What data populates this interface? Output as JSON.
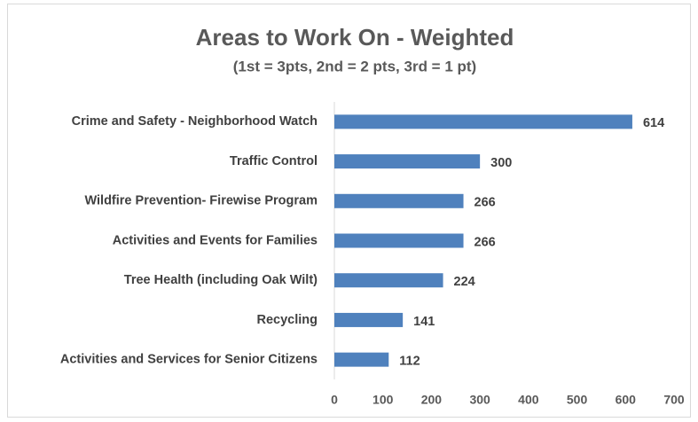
{
  "chart_data": {
    "type": "bar",
    "orientation": "horizontal",
    "title": "Areas to Work On - Weighted",
    "subtitle": "(1st = 3pts, 2nd = 2 pts, 3rd = 1 pt)",
    "categories": [
      "Crime and Safety - Neighborhood Watch",
      "Traffic Control",
      "Wildfire Prevention- Firewise Program",
      "Activities and Events for Families",
      "Tree Health (including Oak Wilt)",
      "Recycling",
      "Activities and Services for Senior Citizens"
    ],
    "values": [
      614,
      300,
      266,
      266,
      224,
      141,
      112
    ],
    "color": "#4f81bd",
    "xlim": [
      0,
      700
    ],
    "xticks": [
      0,
      100,
      200,
      300,
      400,
      500,
      600,
      700
    ],
    "grid": false
  }
}
